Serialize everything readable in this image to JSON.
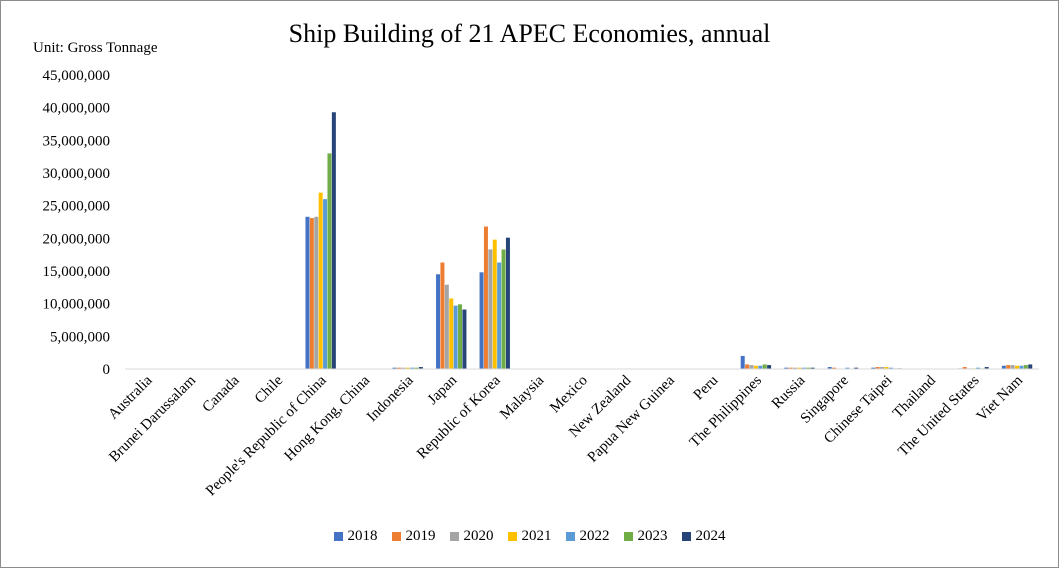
{
  "chart_data": {
    "type": "bar",
    "title": "Ship Building of  21 APEC Economies, annual",
    "unit_label": "Unit: Gross Tonnage",
    "ylim": [
      0,
      45000000
    ],
    "y_ticks": [
      "0",
      "5,000,000",
      "10,000,000",
      "15,000,000",
      "20,000,000",
      "25,000,000",
      "30,000,000",
      "35,000,000",
      "40,000,000",
      "45,000,000"
    ],
    "legend_position": "bottom",
    "grid": false,
    "categories": [
      "Australia",
      "Brunei Darussalam",
      "Canada",
      "Chile",
      "People's Republic of China",
      "Hong Kong, China",
      "Indonesia",
      "Japan",
      "Republic of Korea",
      "Malaysia",
      "Mexico",
      "New Zealand",
      "Papua New Guinea",
      "Peru",
      "The Philippines",
      "Russia",
      "Singapore",
      "Chinese Taipei",
      "Thailand",
      "The United States",
      "Viet Nam"
    ],
    "series": [
      {
        "name": "2018",
        "color": "#4472c4",
        "values": [
          0,
          0,
          0,
          0,
          23300000,
          0,
          200000,
          14500000,
          14800000,
          0,
          0,
          0,
          0,
          0,
          2000000,
          200000,
          300000,
          200000,
          0,
          100000,
          500000
        ]
      },
      {
        "name": "2019",
        "color": "#ed7d31",
        "values": [
          0,
          0,
          0,
          0,
          23100000,
          0,
          200000,
          16300000,
          21800000,
          0,
          0,
          0,
          0,
          0,
          700000,
          200000,
          200000,
          300000,
          0,
          300000,
          600000
        ]
      },
      {
        "name": "2020",
        "color": "#a5a5a5",
        "values": [
          0,
          0,
          0,
          0,
          23300000,
          0,
          200000,
          12900000,
          18300000,
          0,
          0,
          0,
          0,
          0,
          600000,
          200000,
          0,
          300000,
          0,
          100000,
          600000
        ]
      },
      {
        "name": "2021",
        "color": "#ffc000",
        "values": [
          0,
          0,
          0,
          0,
          27000000,
          0,
          200000,
          10800000,
          19800000,
          0,
          0,
          0,
          0,
          0,
          500000,
          200000,
          0,
          300000,
          0,
          100000,
          500000
        ]
      },
      {
        "name": "2022",
        "color": "#5b9bd5",
        "values": [
          0,
          0,
          0,
          0,
          26000000,
          0,
          200000,
          9700000,
          16300000,
          0,
          0,
          0,
          0,
          0,
          500000,
          200000,
          200000,
          200000,
          0,
          200000,
          500000
        ]
      },
      {
        "name": "2023",
        "color": "#70ad47",
        "values": [
          0,
          0,
          0,
          0,
          33000000,
          0,
          200000,
          9900000,
          18300000,
          0,
          0,
          0,
          0,
          0,
          700000,
          200000,
          0,
          100000,
          0,
          100000,
          600000
        ]
      },
      {
        "name": "2024",
        "color": "#264478",
        "values": [
          0,
          0,
          0,
          0,
          39300000,
          0,
          300000,
          9100000,
          20100000,
          0,
          0,
          0,
          0,
          0,
          600000,
          200000,
          200000,
          100000,
          0,
          300000,
          700000
        ]
      }
    ]
  }
}
